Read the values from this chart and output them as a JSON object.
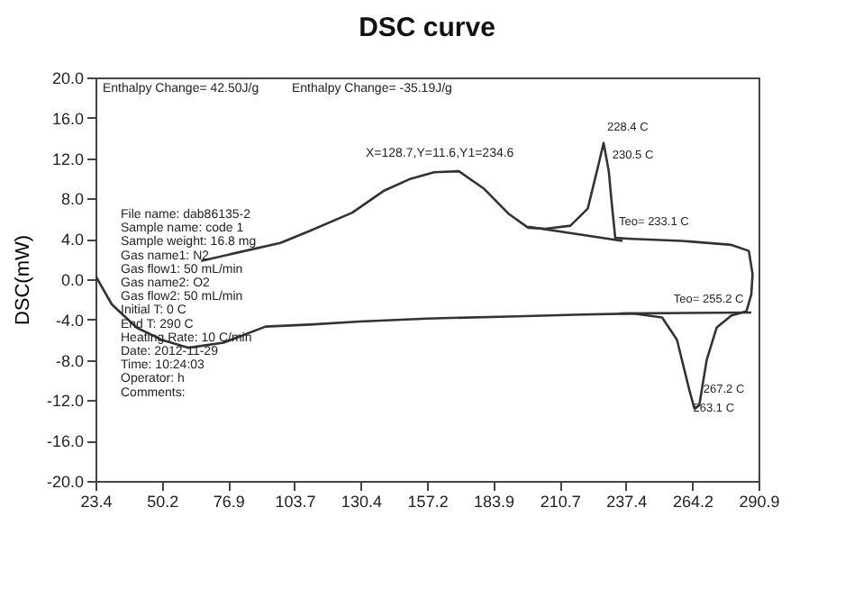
{
  "chart_data": {
    "type": "line",
    "title": "DSC curve",
    "ylabel": "DSC(mW)",
    "xlim": [
      23.4,
      290.9
    ],
    "xticks": [
      23.4,
      50.2,
      76.9,
      103.7,
      130.4,
      157.2,
      183.9,
      210.7,
      237.4,
      264.2,
      290.9
    ],
    "ylim": [
      -20,
      20
    ],
    "yticks": [
      {
        "value": -20,
        "label": "-20.0"
      },
      {
        "value": -16,
        "label": "-16.0"
      },
      {
        "value": -12,
        "label": "-12.0"
      },
      {
        "value": -8,
        "label": "-8.0"
      },
      {
        "value": -4,
        "label": "-4.0"
      },
      {
        "value": 0,
        "label": "0.0"
      },
      {
        "value": 4,
        "label": "4.0"
      },
      {
        "value": 8,
        "label": "8.0"
      },
      {
        "value": 12,
        "label": "12.0"
      },
      {
        "value": 16,
        "label": "16.0"
      },
      {
        "value": 20,
        "label": "20.0"
      }
    ],
    "grid": false,
    "line_style": "solid",
    "series": [
      {
        "color": "#333333",
        "x": [
          23.5,
          30,
          40,
          50,
          61,
          75,
          92,
          110,
          130,
          157,
          190,
          220,
          240,
          252,
          258,
          263,
          265,
          267,
          270,
          274,
          280,
          286,
          288,
          288.5,
          287,
          280,
          260,
          240,
          233.1,
          231.5,
          230.5,
          228.4,
          226,
          222,
          215,
          205,
          198,
          190,
          180,
          170,
          160,
          150,
          140,
          127,
          110,
          98,
          80,
          66
        ],
        "values": [
          0.3,
          -2.5,
          -4.8,
          -6,
          -6.8,
          -6.3,
          -4.7,
          -4.5,
          -4.2,
          -3.9,
          -3.7,
          -3.5,
          -3.4,
          -3.8,
          -6,
          -11,
          -12.8,
          -12.5,
          -8,
          -4.8,
          -3.6,
          -3.2,
          -1.5,
          0.5,
          2.8,
          3.4,
          3.8,
          4,
          4.1,
          8,
          10.7,
          13.5,
          11,
          7,
          5.3,
          5,
          5.1,
          6.5,
          9,
          10.7,
          10.6,
          9.9,
          8.8,
          6.6,
          4.8,
          3.6,
          2.6,
          1.8
        ]
      },
      {
        "color": "#333333",
        "x": [
          198,
          236
        ],
        "values": [
          5.2,
          3.8
        ]
      },
      {
        "color": "#333333",
        "x": [
          235,
          288
        ],
        "values": [
          -3.4,
          -3.3
        ]
      }
    ],
    "annotations": [
      "Enthalpy Change= 42.50J/g",
      "Enthalpy Change= -35.19J/g",
      "X=128.7,Y=11.6,Y1=234.6",
      "File name:     dab86135-2",
      "Sample name:   code 1",
      "Sample weight: 16.8 mg",
      "Gas name1:     N2",
      "Gas flow1:     50 mL/min",
      "Gas name2:     O2",
      "Gas flow2:     50 mL/min",
      "Initial T:     0 C",
      "End T:         290 C",
      "Heating Rate:  10 C/min",
      "Date:          2012-11-29",
      "Time:          10:24:03",
      "Operator:      h",
      "Comments:",
      {
        "text": "228.4 C",
        "x": 228.4,
        "y": 13.5
      },
      {
        "text": "230.5 C",
        "x": 230.5,
        "y": 10.7
      },
      {
        "text": "Teo= 233.1 C",
        "x": 233.1,
        "y": 4.1
      },
      {
        "text": "Teo= 255.2 C",
        "x": 255.2,
        "y": -3.6
      },
      {
        "text": "267.2 C",
        "x": 267.2,
        "y": -12.5
      },
      {
        "text": "263.1 C",
        "x": 263.1,
        "y": -12.8
      }
    ]
  }
}
